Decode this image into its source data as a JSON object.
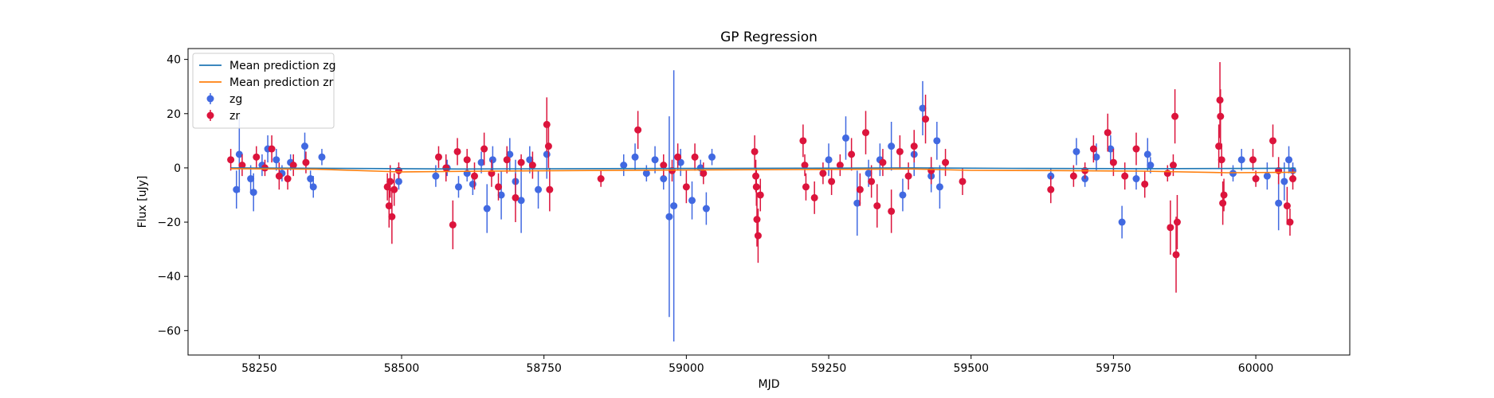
{
  "chart_data": {
    "type": "scatter",
    "title": "GP Regression",
    "xlabel": "MJD",
    "ylabel": "Flux [uJy]",
    "xlim": [
      58125,
      60165
    ],
    "ylim": [
      -69,
      44
    ],
    "xticks": [
      58250,
      58500,
      58750,
      59000,
      59250,
      59500,
      59750,
      60000
    ],
    "xtick_labels": [
      "58250",
      "58500",
      "58750",
      "59000",
      "59250",
      "59500",
      "59750",
      "60000"
    ],
    "yticks": [
      -60,
      -40,
      -20,
      0,
      20,
      40
    ],
    "ytick_labels": [
      "−60",
      "−40",
      "−20",
      "0",
      "20",
      "40"
    ],
    "grid": false,
    "legend_position": "top-left",
    "legend": [
      {
        "label": "Mean prediction zg",
        "kind": "line",
        "color": "#1f77b4"
      },
      {
        "label": "Mean prediction zr",
        "kind": "line",
        "color": "#ff7f0e"
      },
      {
        "label": "zg",
        "kind": "errorbar",
        "color": "#4169e1"
      },
      {
        "label": "zr",
        "kind": "errorbar",
        "color": "#dc143c"
      }
    ],
    "series": [
      {
        "name": "Mean prediction zg",
        "kind": "line",
        "color": "#1f77b4",
        "x": [
          58200,
          58400,
          58600,
          58800,
          59000,
          59200,
          59400,
          59600,
          59800,
          60000,
          60070
        ],
        "y": [
          0.0,
          -0.2,
          -0.4,
          -0.3,
          -0.2,
          -0.1,
          0.0,
          -0.2,
          -0.3,
          -0.2,
          -0.1
        ]
      },
      {
        "name": "Mean prediction zr",
        "kind": "line",
        "color": "#ff7f0e",
        "x": [
          58200,
          58350,
          58500,
          58650,
          58800,
          59000,
          59200,
          59400,
          59500,
          59650,
          59800,
          59950,
          60070
        ],
        "y": [
          -0.3,
          -0.5,
          -1.5,
          -1.2,
          -1.0,
          -0.8,
          -0.6,
          -0.4,
          -0.9,
          -1.0,
          -1.2,
          -1.8,
          -1.6
        ]
      },
      {
        "name": "zg",
        "kind": "errorbar",
        "color": "#4169e1",
        "points": [
          [
            58210,
            -8,
            7
          ],
          [
            58215,
            5,
            14
          ],
          [
            58235,
            -4,
            5
          ],
          [
            58240,
            -9,
            7
          ],
          [
            58255,
            1,
            4
          ],
          [
            58265,
            7,
            5
          ],
          [
            58280,
            3,
            4
          ],
          [
            58290,
            -2,
            3
          ],
          [
            58305,
            2,
            3
          ],
          [
            58330,
            8,
            5
          ],
          [
            58340,
            -4,
            3
          ],
          [
            58345,
            -7,
            4
          ],
          [
            58360,
            4,
            3
          ],
          [
            58495,
            -5,
            3
          ],
          [
            58560,
            -3,
            4
          ],
          [
            58580,
            0,
            3
          ],
          [
            58600,
            -7,
            4
          ],
          [
            58615,
            -2,
            3
          ],
          [
            58625,
            -6,
            4
          ],
          [
            58640,
            2,
            4
          ],
          [
            58650,
            -15,
            9
          ],
          [
            58660,
            3,
            5
          ],
          [
            58675,
            -10,
            9
          ],
          [
            58690,
            5,
            6
          ],
          [
            58700,
            -5,
            8
          ],
          [
            58710,
            -12,
            12
          ],
          [
            58725,
            3,
            5
          ],
          [
            58740,
            -8,
            7
          ],
          [
            58755,
            5,
            9
          ],
          [
            58890,
            1,
            4
          ],
          [
            58910,
            4,
            5
          ],
          [
            58930,
            -2,
            3
          ],
          [
            58945,
            3,
            5
          ],
          [
            58960,
            -4,
            4
          ],
          [
            58970,
            -18,
            37
          ],
          [
            58978,
            -14,
            50
          ],
          [
            58990,
            2,
            5
          ],
          [
            59010,
            -12,
            7
          ],
          [
            59025,
            0,
            3
          ],
          [
            59035,
            -15,
            6
          ],
          [
            59045,
            4,
            3
          ],
          [
            59250,
            3,
            6
          ],
          [
            59280,
            11,
            8
          ],
          [
            59300,
            -13,
            12
          ],
          [
            59320,
            -2,
            5
          ],
          [
            59340,
            3,
            6
          ],
          [
            59360,
            8,
            9
          ],
          [
            59380,
            -10,
            6
          ],
          [
            59400,
            5,
            8
          ],
          [
            59415,
            22,
            10
          ],
          [
            59430,
            -3,
            6
          ],
          [
            59440,
            10,
            7
          ],
          [
            59445,
            -7,
            8
          ],
          [
            59640,
            -3,
            3
          ],
          [
            59685,
            6,
            5
          ],
          [
            59700,
            -4,
            3
          ],
          [
            59720,
            4,
            5
          ],
          [
            59745,
            7,
            5
          ],
          [
            59765,
            -20,
            6
          ],
          [
            59790,
            -4,
            4
          ],
          [
            59810,
            5,
            6
          ],
          [
            59815,
            1,
            3
          ],
          [
            59960,
            -2,
            3
          ],
          [
            59975,
            3,
            4
          ],
          [
            60020,
            -3,
            5
          ],
          [
            60040,
            -13,
            10
          ],
          [
            60050,
            -5,
            7
          ],
          [
            60058,
            3,
            5
          ],
          [
            60065,
            -1,
            3
          ]
        ]
      },
      {
        "name": "zr",
        "kind": "errorbar",
        "color": "#dc143c",
        "points": [
          [
            58200,
            3,
            4
          ],
          [
            58220,
            1,
            4
          ],
          [
            58245,
            4,
            4
          ],
          [
            58260,
            0,
            3
          ],
          [
            58272,
            7,
            5
          ],
          [
            58285,
            -3,
            5
          ],
          [
            58300,
            -4,
            4
          ],
          [
            58310,
            1,
            4
          ],
          [
            58332,
            2,
            4
          ],
          [
            58475,
            -7,
            5
          ],
          [
            58478,
            -14,
            8
          ],
          [
            58480,
            -5,
            6
          ],
          [
            58483,
            -18,
            10
          ],
          [
            58487,
            -8,
            6
          ],
          [
            58495,
            -1,
            3
          ],
          [
            58565,
            4,
            4
          ],
          [
            58578,
            0,
            5
          ],
          [
            58590,
            -21,
            9
          ],
          [
            58598,
            6,
            5
          ],
          [
            58615,
            3,
            4
          ],
          [
            58628,
            -3,
            5
          ],
          [
            58645,
            7,
            6
          ],
          [
            58658,
            -2,
            5
          ],
          [
            58670,
            -7,
            5
          ],
          [
            58685,
            3,
            5
          ],
          [
            58700,
            -11,
            9
          ],
          [
            58710,
            2,
            3
          ],
          [
            58730,
            1,
            5
          ],
          [
            58755,
            16,
            10
          ],
          [
            58758,
            8,
            8
          ],
          [
            58760,
            -8,
            8
          ],
          [
            58850,
            -4,
            3
          ],
          [
            58915,
            14,
            7
          ],
          [
            58960,
            1,
            4
          ],
          [
            58975,
            -1,
            4
          ],
          [
            58985,
            4,
            5
          ],
          [
            59000,
            -7,
            6
          ],
          [
            59015,
            4,
            5
          ],
          [
            59030,
            -2,
            4
          ],
          [
            59120,
            6,
            6
          ],
          [
            59122,
            -3,
            6
          ],
          [
            59123,
            -7,
            7
          ],
          [
            59124,
            -19,
            10
          ],
          [
            59126,
            -25,
            10
          ],
          [
            59130,
            -10,
            6
          ],
          [
            59205,
            10,
            6
          ],
          [
            59208,
            1,
            4
          ],
          [
            59210,
            -7,
            5
          ],
          [
            59225,
            -11,
            6
          ],
          [
            59240,
            -2,
            4
          ],
          [
            59255,
            -5,
            5
          ],
          [
            59270,
            1,
            4
          ],
          [
            59290,
            5,
            6
          ],
          [
            59305,
            -8,
            6
          ],
          [
            59315,
            13,
            8
          ],
          [
            59325,
            -5,
            6
          ],
          [
            59335,
            -14,
            8
          ],
          [
            59345,
            2,
            5
          ],
          [
            59360,
            -16,
            8
          ],
          [
            59375,
            6,
            6
          ],
          [
            59390,
            -3,
            5
          ],
          [
            59400,
            8,
            6
          ],
          [
            59420,
            18,
            9
          ],
          [
            59430,
            -1,
            5
          ],
          [
            59455,
            2,
            5
          ],
          [
            59485,
            -5,
            5
          ],
          [
            59640,
            -8,
            5
          ],
          [
            59680,
            -3,
            4
          ],
          [
            59700,
            -1,
            3
          ],
          [
            59715,
            7,
            5
          ],
          [
            59740,
            13,
            7
          ],
          [
            59750,
            2,
            5
          ],
          [
            59770,
            -3,
            5
          ],
          [
            59790,
            7,
            6
          ],
          [
            59805,
            -6,
            5
          ],
          [
            59845,
            -2,
            3
          ],
          [
            59850,
            -22,
            10
          ],
          [
            59855,
            1,
            4
          ],
          [
            59858,
            19,
            10
          ],
          [
            59860,
            -32,
            14
          ],
          [
            59862,
            -20,
            10
          ],
          [
            59935,
            8,
            8
          ],
          [
            59937,
            25,
            14
          ],
          [
            59938,
            19,
            10
          ],
          [
            59940,
            3,
            6
          ],
          [
            59942,
            -13,
            8
          ],
          [
            59944,
            -10,
            6
          ],
          [
            59995,
            3,
            4
          ],
          [
            60000,
            -4,
            3
          ],
          [
            60030,
            10,
            6
          ],
          [
            60040,
            -1,
            5
          ],
          [
            60055,
            -14,
            7
          ],
          [
            60060,
            -20,
            5
          ],
          [
            60065,
            -4,
            4
          ]
        ]
      }
    ]
  }
}
